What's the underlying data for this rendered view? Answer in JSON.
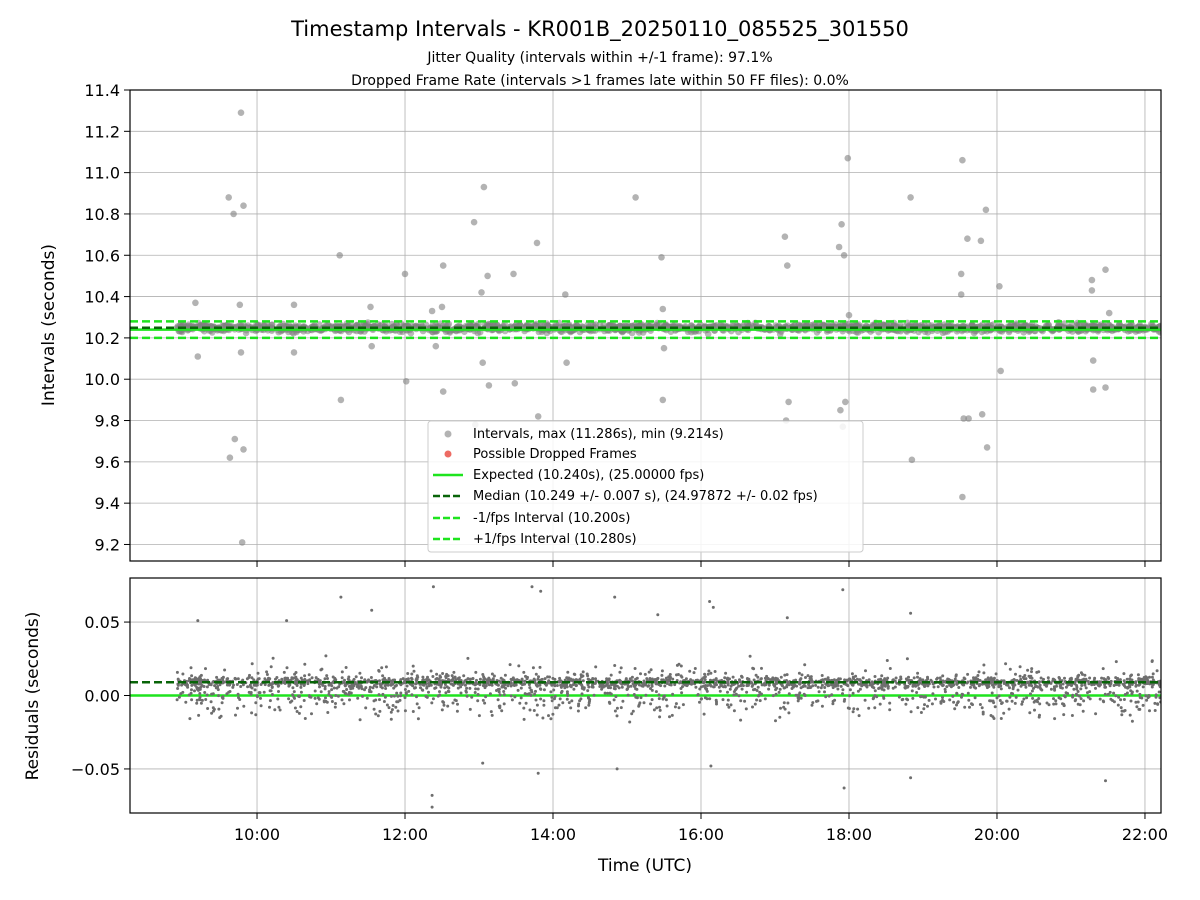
{
  "figure": {
    "title": "Timestamp Intervals - KR001B_20250110_085525_301550",
    "subtitle_1": "Jitter Quality (intervals within +/-1 frame): 97.1%",
    "subtitle_2": "Dropped Frame Rate (intervals >1 frames late within 50 FF files): 0.0%"
  },
  "colors": {
    "points": "#808080",
    "dropped": "#e8463c",
    "expected": "#1ee41e",
    "median": "#086408",
    "interval_band": "#1ee41e",
    "grid": "#b0b0b0"
  },
  "chart_data": [
    {
      "type": "scatter",
      "panel": "intervals",
      "ylabel": "Intervals (seconds)",
      "ylim": [
        9.12,
        11.4
      ],
      "yticks": [
        "9.2",
        "9.4",
        "9.6",
        "9.8",
        "10.0",
        "10.2",
        "10.4",
        "10.6",
        "10.8",
        "11.0",
        "11.2",
        "11.4"
      ],
      "ytick_values": [
        9.2,
        9.4,
        9.6,
        9.8,
        10.0,
        10.2,
        10.4,
        10.6,
        10.8,
        11.0,
        11.2,
        11.4
      ],
      "grid": true,
      "legend_position": "lower-center",
      "reference_lines": [
        {
          "name": "Expected",
          "value": 10.24,
          "style": "solid"
        },
        {
          "name": "Median",
          "value": 10.249,
          "style": "dashed"
        },
        {
          "name": "-1/fps Interval",
          "value": 10.2,
          "style": "dashed"
        },
        {
          "name": "+1/fps Interval",
          "value": 10.28,
          "style": "dashed"
        }
      ],
      "legend": [
        {
          "label": "Intervals, max (11.286s), min (9.214s)",
          "kind": "marker",
          "color_key": "points"
        },
        {
          "label": "Possible Dropped Frames",
          "kind": "marker",
          "color_key": "dropped"
        },
        {
          "label": "Expected (10.240s), (25.00000 fps)",
          "kind": "solid",
          "color_key": "expected"
        },
        {
          "label": "Median (10.249 +/- 0.007 s), (24.97872 +/- 0.02 fps)",
          "kind": "dashed",
          "color_key": "median"
        },
        {
          "label": "-1/fps Interval (10.200s)",
          "kind": "dashed",
          "color_key": "interval_band"
        },
        {
          "label": "+1/fps Interval (10.280s)",
          "kind": "dashed",
          "color_key": "interval_band"
        }
      ],
      "outliers": [
        {
          "x": "09:10",
          "y": 10.37
        },
        {
          "x": "09:12",
          "y": 10.11
        },
        {
          "x": "09:37",
          "y": 10.88
        },
        {
          "x": "09:38",
          "y": 9.62
        },
        {
          "x": "09:41",
          "y": 10.8
        },
        {
          "x": "09:42",
          "y": 9.71
        },
        {
          "x": "09:46",
          "y": 10.36
        },
        {
          "x": "09:47",
          "y": 10.13
        },
        {
          "x": "09:47",
          "y": 11.29
        },
        {
          "x": "09:48",
          "y": 9.21
        },
        {
          "x": "09:49",
          "y": 10.84
        },
        {
          "x": "09:49",
          "y": 9.66
        },
        {
          "x": "10:30",
          "y": 10.36
        },
        {
          "x": "10:30",
          "y": 10.13
        },
        {
          "x": "11:07",
          "y": 10.6
        },
        {
          "x": "11:08",
          "y": 9.9
        },
        {
          "x": "11:32",
          "y": 10.35
        },
        {
          "x": "11:33",
          "y": 10.16
        },
        {
          "x": "12:00",
          "y": 10.51
        },
        {
          "x": "12:01",
          "y": 9.99
        },
        {
          "x": "12:22",
          "y": 10.33
        },
        {
          "x": "12:25",
          "y": 10.16
        },
        {
          "x": "12:30",
          "y": 10.35
        },
        {
          "x": "12:31",
          "y": 10.55
        },
        {
          "x": "12:31",
          "y": 9.94
        },
        {
          "x": "12:56",
          "y": 10.76
        },
        {
          "x": "12:57",
          "y": 9.78
        },
        {
          "x": "13:02",
          "y": 10.42
        },
        {
          "x": "13:03",
          "y": 10.08
        },
        {
          "x": "13:04",
          "y": 10.93
        },
        {
          "x": "13:07",
          "y": 10.5
        },
        {
          "x": "13:08",
          "y": 9.97
        },
        {
          "x": "13:28",
          "y": 10.51
        },
        {
          "x": "13:29",
          "y": 9.98
        },
        {
          "x": "13:47",
          "y": 10.66
        },
        {
          "x": "13:48",
          "y": 9.82
        },
        {
          "x": "14:10",
          "y": 10.41
        },
        {
          "x": "14:11",
          "y": 10.08
        },
        {
          "x": "15:07",
          "y": 10.88
        },
        {
          "x": "15:28",
          "y": 10.59
        },
        {
          "x": "15:29",
          "y": 9.9
        },
        {
          "x": "15:29",
          "y": 10.34
        },
        {
          "x": "15:30",
          "y": 10.15
        },
        {
          "x": "17:08",
          "y": 10.69
        },
        {
          "x": "17:09",
          "y": 9.8
        },
        {
          "x": "17:10",
          "y": 10.55
        },
        {
          "x": "17:11",
          "y": 9.89
        },
        {
          "x": "17:52",
          "y": 10.64
        },
        {
          "x": "17:53",
          "y": 9.85
        },
        {
          "x": "17:54",
          "y": 10.75
        },
        {
          "x": "17:55",
          "y": 9.77
        },
        {
          "x": "17:56",
          "y": 10.6
        },
        {
          "x": "17:57",
          "y": 9.89
        },
        {
          "x": "17:59",
          "y": 11.07
        },
        {
          "x": "18:00",
          "y": 10.31
        },
        {
          "x": "18:50",
          "y": 10.88
        },
        {
          "x": "18:51",
          "y": 9.61
        },
        {
          "x": "19:31",
          "y": 10.51
        },
        {
          "x": "19:31",
          "y": 10.41
        },
        {
          "x": "19:32",
          "y": 11.06
        },
        {
          "x": "19:32",
          "y": 9.43
        },
        {
          "x": "19:33",
          "y": 9.81
        },
        {
          "x": "19:36",
          "y": 10.68
        },
        {
          "x": "19:37",
          "y": 9.81
        },
        {
          "x": "19:47",
          "y": 10.67
        },
        {
          "x": "19:48",
          "y": 9.83
        },
        {
          "x": "19:51",
          "y": 10.82
        },
        {
          "x": "19:52",
          "y": 9.67
        },
        {
          "x": "20:02",
          "y": 10.45
        },
        {
          "x": "20:03",
          "y": 10.04
        },
        {
          "x": "21:17",
          "y": 10.48
        },
        {
          "x": "21:17",
          "y": 10.43
        },
        {
          "x": "21:18",
          "y": 10.09
        },
        {
          "x": "21:18",
          "y": 9.95
        },
        {
          "x": "21:28",
          "y": 10.53
        },
        {
          "x": "21:28",
          "y": 9.96
        },
        {
          "x": "21:31",
          "y": 10.32
        }
      ],
      "bulk_points": {
        "x_start": "08:55",
        "x_end": "22:13",
        "median_y": 10.249,
        "spread_y": 0.04,
        "approx_count": 4700
      }
    },
    {
      "type": "scatter",
      "panel": "residuals",
      "ylabel": "Residuals (seconds)",
      "xlabel": "Time (UTC)",
      "xlim": [
        "08:17",
        "22:13"
      ],
      "xticks": [
        "10:00",
        "12:00",
        "14:00",
        "16:00",
        "18:00",
        "20:00",
        "22:00"
      ],
      "ylim": [
        -0.08,
        0.08
      ],
      "yticks": [
        "−0.05",
        "0.00",
        "0.05"
      ],
      "ytick_values": [
        -0.05,
        0.0,
        0.05
      ],
      "grid": true,
      "reference_lines": [
        {
          "name": "Expected",
          "value": 0.0,
          "style": "solid"
        },
        {
          "name": "Median",
          "value": 0.009,
          "style": "dashed"
        }
      ],
      "bulk_points": {
        "x_start": "08:55",
        "x_end": "22:13",
        "center_y": 0.009,
        "spread_y": 0.012,
        "approx_count": 4700
      },
      "outliers": [
        {
          "x": "09:12",
          "y": 0.051
        },
        {
          "x": "10:24",
          "y": 0.051
        },
        {
          "x": "11:08",
          "y": 0.067
        },
        {
          "x": "11:33",
          "y": 0.058
        },
        {
          "x": "12:22",
          "y": -0.068
        },
        {
          "x": "12:22",
          "y": -0.076
        },
        {
          "x": "12:23",
          "y": 0.074
        },
        {
          "x": "13:03",
          "y": -0.046
        },
        {
          "x": "13:43",
          "y": 0.074
        },
        {
          "x": "13:50",
          "y": 0.071
        },
        {
          "x": "13:48",
          "y": -0.053
        },
        {
          "x": "14:50",
          "y": 0.067
        },
        {
          "x": "14:52",
          "y": -0.05
        },
        {
          "x": "15:25",
          "y": 0.055
        },
        {
          "x": "16:07",
          "y": 0.064
        },
        {
          "x": "16:10",
          "y": 0.06
        },
        {
          "x": "16:08",
          "y": -0.048
        },
        {
          "x": "17:10",
          "y": 0.053
        },
        {
          "x": "17:55",
          "y": 0.072
        },
        {
          "x": "17:56",
          "y": -0.063
        },
        {
          "x": "18:50",
          "y": 0.056
        },
        {
          "x": "18:50",
          "y": -0.056
        },
        {
          "x": "21:28",
          "y": -0.058
        }
      ]
    }
  ]
}
